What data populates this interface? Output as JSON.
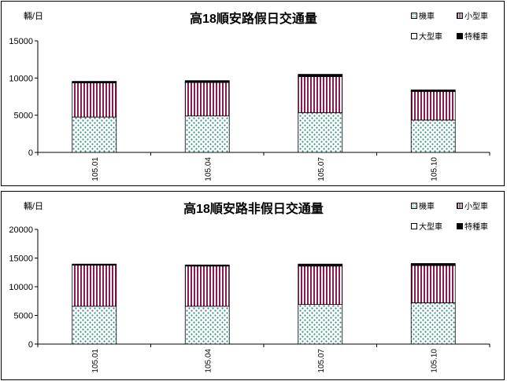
{
  "chart_data": [
    {
      "type": "bar",
      "stacked": true,
      "title": "高18順安路假日交通量",
      "ylabel": "輛/日",
      "categories": [
        "105.01",
        "105.04",
        "105.07",
        "105.10"
      ],
      "ylim": [
        0,
        15000
      ],
      "yticks": [
        "0",
        "5000",
        "10000",
        "15000"
      ],
      "series": [
        {
          "name": "機車",
          "values": [
            4750,
            4900,
            5350,
            4350
          ]
        },
        {
          "name": "小型車",
          "values": [
            4600,
            4500,
            4850,
            3850
          ]
        },
        {
          "name": "大型車",
          "values": [
            50,
            50,
            50,
            50
          ]
        },
        {
          "name": "特種車",
          "values": [
            150,
            200,
            250,
            150
          ]
        }
      ],
      "legend_position": "top-right",
      "grid": false
    },
    {
      "type": "bar",
      "stacked": true,
      "title": "高18順安路非假日交通量",
      "ylabel": "輛/日",
      "categories": [
        "105.01",
        "105.04",
        "105.07",
        "105.10"
      ],
      "ylim": [
        0,
        20000
      ],
      "yticks": [
        "0",
        "5000",
        "10000",
        "15000",
        "20000"
      ],
      "series": [
        {
          "name": "機車",
          "values": [
            6600,
            6600,
            6900,
            7200
          ]
        },
        {
          "name": "小型車",
          "values": [
            7150,
            7000,
            6700,
            6500
          ]
        },
        {
          "name": "大型車",
          "values": [
            50,
            50,
            50,
            50
          ]
        },
        {
          "name": "特種車",
          "values": [
            150,
            150,
            300,
            300
          ]
        }
      ],
      "legend_position": "top-right",
      "grid": false
    }
  ]
}
